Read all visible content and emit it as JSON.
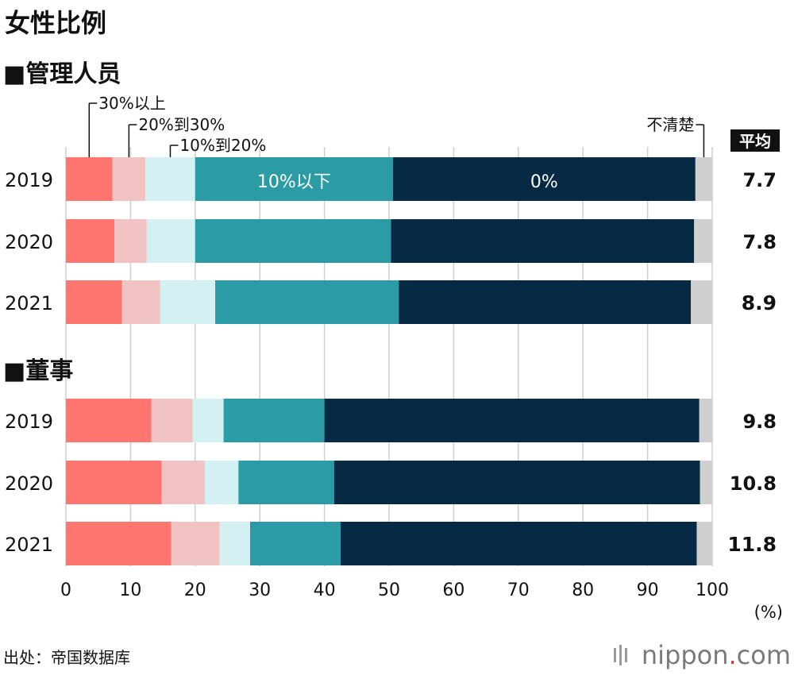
{
  "title": "女性比例",
  "unit_label": "(%)",
  "average_label": "平均",
  "source": "出处：帝国数据库",
  "logo": {
    "main": "nippon",
    "dot": ".",
    "tld": "com"
  },
  "chart_data": {
    "type": "bar",
    "orientation": "horizontal",
    "stacked": true,
    "xlim": [
      0,
      100
    ],
    "xticks": [
      0,
      10,
      20,
      30,
      40,
      50,
      60,
      70,
      80,
      90,
      100
    ],
    "xlabel": "(%)",
    "grid": true,
    "categories_legend": [
      "30%以上",
      "20%到30%",
      "10%到20%",
      "10%以下",
      "0%",
      "不清楚"
    ],
    "colors": [
      "#ff7570",
      "#f0c2c2",
      "#d3f0f2",
      "#2b9ba5",
      "#062a44",
      "#cfcfcf"
    ],
    "inline_labels": {
      "segment_3": "10%以下",
      "segment_4": "0%"
    },
    "panels": [
      {
        "name": "■管理人员",
        "rows": [
          {
            "year": "2019",
            "values": [
              7.2,
              5.1,
              7.7,
              30.6,
              46.8,
              2.6
            ],
            "average": "7.7"
          },
          {
            "year": "2020",
            "values": [
              7.5,
              5.0,
              7.5,
              30.3,
              46.9,
              2.8
            ],
            "average": "7.8"
          },
          {
            "year": "2021",
            "values": [
              8.7,
              5.9,
              8.5,
              28.4,
              45.2,
              3.3
            ],
            "average": "8.9"
          }
        ]
      },
      {
        "name": "■董事",
        "rows": [
          {
            "year": "2019",
            "values": [
              13.2,
              6.4,
              4.8,
              15.6,
              58.0,
              2.0
            ],
            "average": "9.8"
          },
          {
            "year": "2020",
            "values": [
              14.8,
              6.7,
              5.2,
              14.8,
              56.6,
              1.9
            ],
            "average": "10.8"
          },
          {
            "year": "2021",
            "values": [
              16.3,
              7.5,
              4.7,
              14.0,
              55.1,
              2.4
            ],
            "average": "11.8"
          }
        ]
      }
    ]
  }
}
